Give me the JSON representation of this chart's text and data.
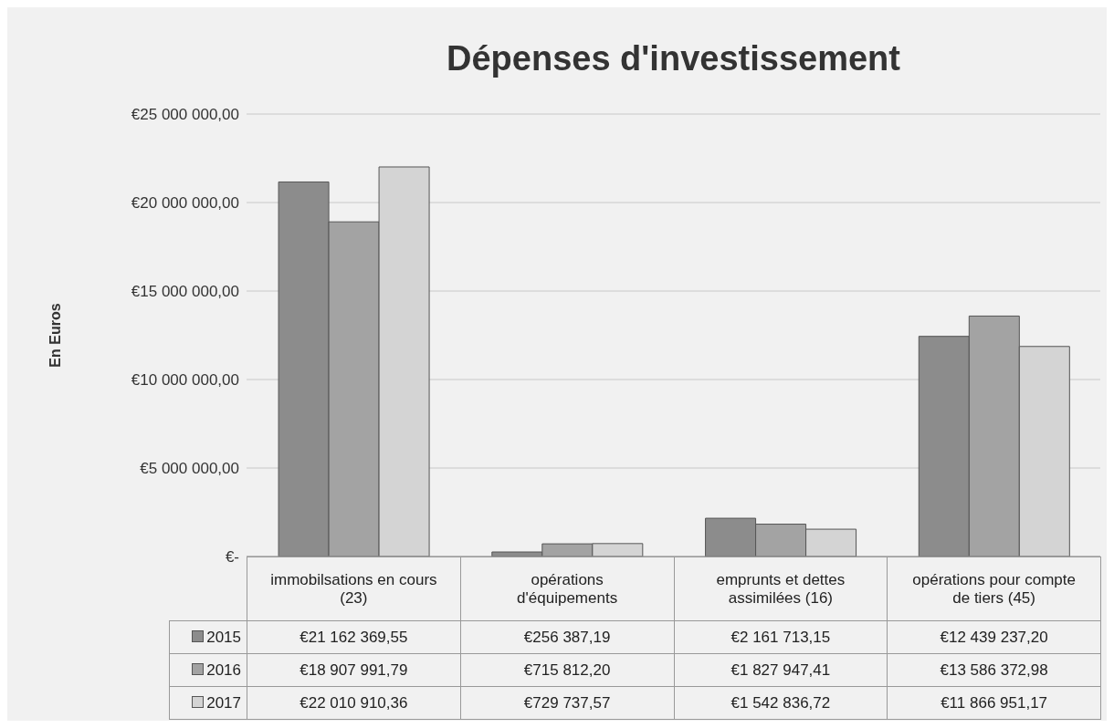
{
  "chart_data": {
    "type": "bar",
    "title": "Dépenses d'investissement",
    "ylabel": "En Euros",
    "categories": [
      "immobilsations en cours (23)",
      "opérations d'équipements",
      "emprunts et dettes assimilées (16)",
      "opérations pour compte de tiers (45)"
    ],
    "series": [
      {
        "name": "2015",
        "color": "#8c8c8c",
        "values": [
          21162369.55,
          256387.19,
          2161713.15,
          12439237.2
        ],
        "value_labels": [
          "€21 162 369,55",
          "€256 387,19",
          "€2 161 713,15",
          "€12 439 237,20"
        ]
      },
      {
        "name": "2016",
        "color": "#a3a3a3",
        "values": [
          18907991.79,
          715812.2,
          1827947.41,
          13586372.98
        ],
        "value_labels": [
          "€18 907 991,79",
          "€715 812,20",
          "€1 827 947,41",
          "€13 586 372,98"
        ]
      },
      {
        "name": "2017",
        "color": "#d4d4d4",
        "values": [
          22010910.36,
          729737.57,
          1542836.72,
          11866951.17
        ],
        "value_labels": [
          "€22 010 910,36",
          "€729 737,57",
          "€1 542 836,72",
          "€11 866 951,17"
        ]
      }
    ],
    "ylim": [
      0,
      25000000
    ],
    "yticks": [
      {
        "value": 0,
        "label": "€-"
      },
      {
        "value": 5000000,
        "label": "€5 000 000,00"
      },
      {
        "value": 10000000,
        "label": "€10 000 000,00"
      },
      {
        "value": 15000000,
        "label": "€15 000 000,00"
      },
      {
        "value": 20000000,
        "label": "€20 000 000,00"
      },
      {
        "value": 25000000,
        "label": "€25 000 000,00"
      }
    ],
    "grid": "y",
    "legend": "bottom"
  }
}
